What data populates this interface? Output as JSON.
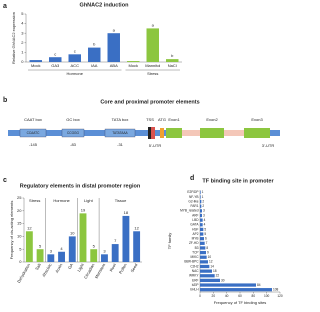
{
  "chart_data": [
    {
      "type": "bar",
      "panel": "a",
      "title": "GhNAC2 induction",
      "y_label": "Relative GhNAC2 expression",
      "categories": [
        "Mock",
        "GA3",
        "ACC",
        "IAA",
        "ABA",
        "Mock",
        "Mannitol",
        "NaCl"
      ],
      "group": [
        "Hormone",
        "Hormone",
        "Hormone",
        "Hormone",
        "Hormone",
        "Stress",
        "Stress",
        "Stress"
      ],
      "values": [
        0.2,
        0.5,
        0.8,
        1.5,
        3.0,
        0.1,
        3.5,
        0.3
      ],
      "annotations": [
        null,
        "c",
        "c",
        "b",
        "a",
        null,
        "a",
        "b"
      ],
      "colors": [
        "#3a6fc4",
        "#3a6fc4",
        "#3a6fc4",
        "#3a6fc4",
        "#3a6fc4",
        "#8cc63f",
        "#8cc63f",
        "#8cc63f"
      ],
      "ylim": [
        0,
        5
      ],
      "yticks": [
        0,
        1,
        2,
        3,
        4,
        5
      ]
    },
    {
      "type": "bar",
      "panel": "c",
      "title": "Regulatory elements in distal promoter region",
      "y_label": "Frequency of cis-acting elements",
      "categories": [
        "Dehydration",
        "Salt",
        "Abscisic",
        "Auxin",
        "GA",
        "Light",
        "Circadian",
        "Meristem",
        "Root",
        "Pollen",
        "Seed"
      ],
      "group": [
        "Stress",
        "Stress",
        "Hormone",
        "Hormone",
        "Hormone",
        "Light",
        "Light",
        "Tissue",
        "Tissue",
        "Tissue",
        "Tissue"
      ],
      "values": [
        12,
        5,
        3,
        4,
        10,
        19,
        5,
        3,
        7,
        18,
        12
      ],
      "colors": [
        "#8cc63f",
        "#8cc63f",
        "#3a6fc4",
        "#3a6fc4",
        "#3a6fc4",
        "#8cc63f",
        "#8cc63f",
        "#3a6fc4",
        "#3a6fc4",
        "#3a6fc4",
        "#3a6fc4"
      ],
      "ylim": [
        0,
        25
      ],
      "yticks": [
        0,
        5,
        10,
        15,
        20,
        25
      ]
    },
    {
      "type": "hbar",
      "panel": "d",
      "title": "TF binding site in promoter",
      "y_label": "TF family",
      "x_label": "Frequency of TF binding sites",
      "categories": [
        "E2F/DP",
        "NF-YB",
        "G2-like",
        "FAR1",
        "MYB_related",
        "ARF",
        "LBD",
        "GATA",
        "HSF",
        "AP2",
        "MYB",
        "ZF-HD",
        "B3",
        "TCP",
        "MIKC",
        "BBR-BPC",
        "C2H2",
        "NAC",
        "WRKY",
        "ERF",
        "bZIP",
        "bHLH"
      ],
      "values": [
        1,
        1,
        2,
        2,
        3,
        3,
        4,
        4,
        5,
        5,
        6,
        7,
        8,
        9,
        10,
        12,
        14,
        18,
        22,
        30,
        84,
        108
      ],
      "color": "#3a6fc4",
      "xlim": [
        0,
        120
      ],
      "xticks": [
        0,
        20,
        40,
        60,
        80,
        100,
        120
      ]
    }
  ],
  "promoter_diagram": {
    "panel": "b",
    "title": "Core and proximal promoter elements",
    "elements": [
      {
        "label": "CAAT box",
        "sequence": "CCAATC",
        "position": -145
      },
      {
        "label": "GC box",
        "sequence": "CCGGG",
        "position": -83
      },
      {
        "label": "TATA box",
        "sequence": "TATATAAA",
        "position": -31
      }
    ],
    "features": [
      "TSS",
      "ATG",
      "Exon1",
      "Exon2",
      "Exon3",
      "5'-UTR",
      "3'-UTR"
    ]
  }
}
